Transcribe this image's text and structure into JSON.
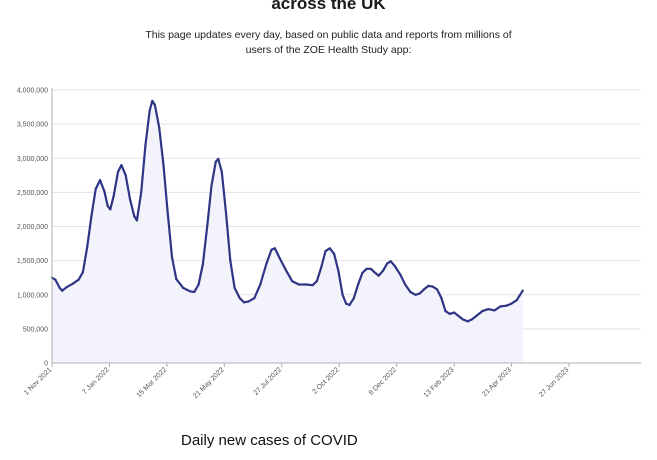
{
  "page": {
    "heading": "across the UK",
    "intro_line1": "This page updates every day, based on public data and reports from millions of",
    "intro_line2": "users of the ZOE Health Study app:",
    "footer_title": "Daily new cases of COVID"
  },
  "colors": {
    "line": "#2e3585",
    "area": "#f3f4fb",
    "grid": "#e3e3e3",
    "axis": "#b0b0b0"
  },
  "chart_data": {
    "type": "area",
    "title": "",
    "xlabel": "",
    "ylabel": "",
    "ylim": [
      0,
      4000000
    ],
    "y_ticks": [
      {
        "value": 0,
        "label": "0"
      },
      {
        "value": 500000,
        "label": "500,000"
      },
      {
        "value": 1000000,
        "label": "1,000,000"
      },
      {
        "value": 1500000,
        "label": "1,500,000"
      },
      {
        "value": 2000000,
        "label": "2,000,000"
      },
      {
        "value": 2500000,
        "label": "2,500,000"
      },
      {
        "value": 3000000,
        "label": "3,000,000"
      },
      {
        "value": 3500000,
        "label": "3,500,000"
      },
      {
        "value": 4000000,
        "label": "4,000,000"
      }
    ],
    "x_ticks": [
      {
        "date": "2021-11-01",
        "label": "1 Nov 2021"
      },
      {
        "date": "2022-01-07",
        "label": "7 Jan 2022"
      },
      {
        "date": "2022-03-15",
        "label": "15 Mar 2022"
      },
      {
        "date": "2022-05-21",
        "label": "21 May 2022"
      },
      {
        "date": "2022-07-27",
        "label": "27 Jul 2022"
      },
      {
        "date": "2022-10-02",
        "label": "2 Oct 2022"
      },
      {
        "date": "2022-12-08",
        "label": "8 Dec 2022"
      },
      {
        "date": "2023-02-13",
        "label": "13 Feb 2023"
      },
      {
        "date": "2023-04-21",
        "label": "21 Apr 2023"
      },
      {
        "date": "2023-06-27",
        "label": "27 Jun 2023"
      }
    ],
    "x_range": [
      "2021-11-01",
      "2023-09-19"
    ],
    "grid": "horizontal",
    "legend": "none",
    "series": [
      {
        "values": [
          [
            "2021-11-01",
            1250000
          ],
          [
            "2021-11-05",
            1220000
          ],
          [
            "2021-11-10",
            1100000
          ],
          [
            "2021-11-13",
            1060000
          ],
          [
            "2021-11-18",
            1110000
          ],
          [
            "2021-11-25",
            1160000
          ],
          [
            "2021-12-02",
            1220000
          ],
          [
            "2021-12-07",
            1330000
          ],
          [
            "2021-12-12",
            1700000
          ],
          [
            "2021-12-17",
            2150000
          ],
          [
            "2021-12-22",
            2550000
          ],
          [
            "2021-12-27",
            2680000
          ],
          [
            "2022-01-01",
            2520000
          ],
          [
            "2022-01-05",
            2300000
          ],
          [
            "2022-01-08",
            2250000
          ],
          [
            "2022-01-12",
            2450000
          ],
          [
            "2022-01-17",
            2800000
          ],
          [
            "2022-01-21",
            2900000
          ],
          [
            "2022-01-26",
            2750000
          ],
          [
            "2022-01-31",
            2400000
          ],
          [
            "2022-02-05",
            2150000
          ],
          [
            "2022-02-08",
            2090000
          ],
          [
            "2022-02-13",
            2500000
          ],
          [
            "2022-02-18",
            3200000
          ],
          [
            "2022-02-23",
            3700000
          ],
          [
            "2022-02-26",
            3840000
          ],
          [
            "2022-03-01",
            3780000
          ],
          [
            "2022-03-06",
            3450000
          ],
          [
            "2022-03-11",
            2900000
          ],
          [
            "2022-03-16",
            2200000
          ],
          [
            "2022-03-21",
            1550000
          ],
          [
            "2022-03-26",
            1230000
          ],
          [
            "2022-04-03",
            1100000
          ],
          [
            "2022-04-11",
            1050000
          ],
          [
            "2022-04-16",
            1040000
          ],
          [
            "2022-04-21",
            1150000
          ],
          [
            "2022-04-26",
            1450000
          ],
          [
            "2022-05-01",
            2000000
          ],
          [
            "2022-05-06",
            2600000
          ],
          [
            "2022-05-11",
            2950000
          ],
          [
            "2022-05-14",
            2990000
          ],
          [
            "2022-05-18",
            2800000
          ],
          [
            "2022-05-23",
            2200000
          ],
          [
            "2022-05-28",
            1500000
          ],
          [
            "2022-06-02",
            1100000
          ],
          [
            "2022-06-08",
            950000
          ],
          [
            "2022-06-13",
            890000
          ],
          [
            "2022-06-18",
            900000
          ],
          [
            "2022-06-25",
            950000
          ],
          [
            "2022-07-02",
            1150000
          ],
          [
            "2022-07-09",
            1450000
          ],
          [
            "2022-07-15",
            1660000
          ],
          [
            "2022-07-19",
            1680000
          ],
          [
            "2022-07-24",
            1550000
          ],
          [
            "2022-07-31",
            1380000
          ],
          [
            "2022-08-08",
            1200000
          ],
          [
            "2022-08-16",
            1150000
          ],
          [
            "2022-08-25",
            1150000
          ],
          [
            "2022-09-01",
            1140000
          ],
          [
            "2022-09-06",
            1200000
          ],
          [
            "2022-09-11",
            1400000
          ],
          [
            "2022-09-16",
            1640000
          ],
          [
            "2022-09-21",
            1680000
          ],
          [
            "2022-09-26",
            1600000
          ],
          [
            "2022-10-01",
            1350000
          ],
          [
            "2022-10-06",
            1000000
          ],
          [
            "2022-10-10",
            870000
          ],
          [
            "2022-10-14",
            850000
          ],
          [
            "2022-10-19",
            950000
          ],
          [
            "2022-10-24",
            1150000
          ],
          [
            "2022-10-29",
            1320000
          ],
          [
            "2022-11-03",
            1380000
          ],
          [
            "2022-11-08",
            1380000
          ],
          [
            "2022-11-13",
            1320000
          ],
          [
            "2022-11-17",
            1280000
          ],
          [
            "2022-11-22",
            1350000
          ],
          [
            "2022-11-27",
            1460000
          ],
          [
            "2022-12-01",
            1490000
          ],
          [
            "2022-12-06",
            1420000
          ],
          [
            "2022-12-12",
            1300000
          ],
          [
            "2022-12-18",
            1150000
          ],
          [
            "2022-12-24",
            1040000
          ],
          [
            "2022-12-30",
            1000000
          ],
          [
            "2023-01-04",
            1020000
          ],
          [
            "2023-01-09",
            1080000
          ],
          [
            "2023-01-14",
            1130000
          ],
          [
            "2023-01-19",
            1120000
          ],
          [
            "2023-01-24",
            1080000
          ],
          [
            "2023-01-29",
            960000
          ],
          [
            "2023-02-03",
            760000
          ],
          [
            "2023-02-08",
            720000
          ],
          [
            "2023-02-13",
            740000
          ],
          [
            "2023-02-18",
            690000
          ],
          [
            "2023-02-23",
            640000
          ],
          [
            "2023-03-01",
            610000
          ],
          [
            "2023-03-06",
            640000
          ],
          [
            "2023-03-11",
            690000
          ],
          [
            "2023-03-18",
            760000
          ],
          [
            "2023-03-25",
            790000
          ],
          [
            "2023-04-01",
            770000
          ],
          [
            "2023-04-08",
            830000
          ],
          [
            "2023-04-15",
            840000
          ],
          [
            "2023-04-21",
            870000
          ],
          [
            "2023-04-27",
            920000
          ],
          [
            "2023-05-04",
            1060000
          ]
        ]
      }
    ]
  }
}
